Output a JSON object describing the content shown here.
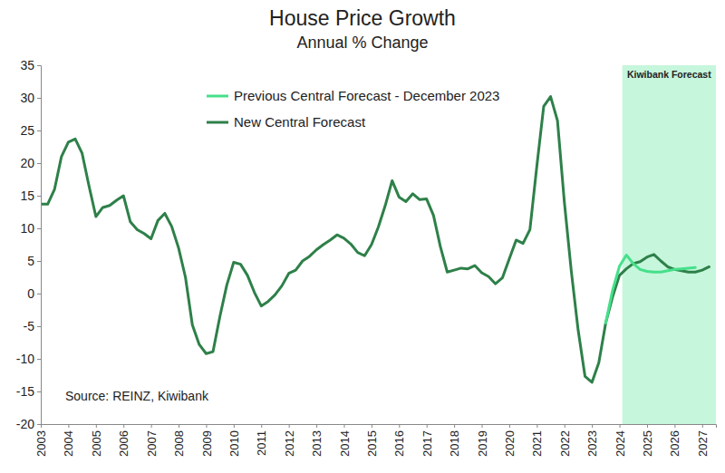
{
  "chart_data": {
    "type": "line",
    "title": "House Price Growth",
    "subtitle": "Annual % Change",
    "source": "Source: REINZ, Kiwibank",
    "shaded_region": {
      "label": "Kiwibank Forecast",
      "x": [
        2024.1,
        2027.5
      ],
      "color": "#c6f6dc"
    },
    "x": [
      2003,
      2003.25,
      2003.5,
      2003.75,
      2004,
      2004.25,
      2004.5,
      2004.75,
      2005,
      2005.25,
      2005.5,
      2005.75,
      2006,
      2006.25,
      2006.5,
      2006.75,
      2007,
      2007.25,
      2007.5,
      2007.75,
      2008,
      2008.25,
      2008.5,
      2008.75,
      2009,
      2009.25,
      2009.5,
      2009.75,
      2010,
      2010.25,
      2010.5,
      2010.75,
      2011,
      2011.25,
      2011.5,
      2011.75,
      2012,
      2012.25,
      2012.5,
      2012.75,
      2013,
      2013.25,
      2013.5,
      2013.75,
      2014,
      2014.25,
      2014.5,
      2014.75,
      2015,
      2015.25,
      2015.5,
      2015.75,
      2016,
      2016.25,
      2016.5,
      2016.75,
      2017,
      2017.25,
      2017.5,
      2017.75,
      2018,
      2018.25,
      2018.5,
      2018.75,
      2019,
      2019.25,
      2019.5,
      2019.75,
      2020,
      2020.25,
      2020.5,
      2020.75,
      2021,
      2021.25,
      2021.5,
      2021.75,
      2022,
      2022.25,
      2022.5,
      2022.75,
      2023,
      2023.25,
      2023.5,
      2023.75,
      2024,
      2024.25,
      2024.5,
      2024.75,
      2025,
      2025.25,
      2025.5,
      2025.75,
      2026,
      2026.25,
      2026.5,
      2026.75,
      2027,
      2027.25
    ],
    "series": [
      {
        "name": "Previous Central Forecast - December 2023",
        "color": "#45e08a",
        "values": [
          null,
          null,
          null,
          null,
          null,
          null,
          null,
          null,
          null,
          null,
          null,
          null,
          null,
          null,
          null,
          null,
          null,
          null,
          null,
          null,
          null,
          null,
          null,
          null,
          null,
          null,
          null,
          null,
          null,
          null,
          null,
          null,
          null,
          null,
          null,
          null,
          null,
          null,
          null,
          null,
          null,
          null,
          null,
          null,
          null,
          null,
          null,
          null,
          null,
          null,
          null,
          null,
          null,
          null,
          null,
          null,
          null,
          null,
          null,
          null,
          null,
          null,
          null,
          null,
          null,
          null,
          null,
          null,
          null,
          null,
          null,
          null,
          null,
          null,
          null,
          null,
          null,
          null,
          null,
          null,
          null,
          null,
          -4.5,
          0.5,
          4.2,
          5.9,
          4.6,
          3.7,
          3.4,
          3.3,
          3.3,
          3.5,
          3.7,
          3.8,
          3.9,
          4.0,
          null,
          null
        ]
      },
      {
        "name": "New Central Forecast",
        "color": "#2e8049",
        "values": [
          13.7,
          13.7,
          16,
          21,
          23.2,
          23.7,
          21.5,
          16.5,
          11.8,
          13.2,
          13.5,
          14.3,
          15,
          11,
          9.8,
          9.2,
          8.4,
          11.2,
          12.3,
          10.3,
          7,
          2.5,
          -4.8,
          -7.8,
          -9.2,
          -8.9,
          -3.5,
          1.3,
          4.8,
          4.5,
          2.8,
          0.2,
          -1.9,
          -1.2,
          -0.2,
          1.2,
          3.1,
          3.6,
          5,
          5.7,
          6.7,
          7.5,
          8.2,
          9,
          8.5,
          7.6,
          6.3,
          5.8,
          7.5,
          10.2,
          13.5,
          17.3,
          14.8,
          14.1,
          15.3,
          14.4,
          14.5,
          12,
          7.2,
          3.3,
          3.6,
          3.9,
          3.8,
          4.3,
          3.2,
          2.6,
          1.5,
          2.4,
          5.3,
          8.2,
          7.7,
          9.8,
          19.5,
          28.7,
          30.2,
          26.5,
          14,
          3.5,
          -5.6,
          -12.7,
          -13.6,
          -10.6,
          -4.5,
          -0.5,
          2.8,
          3.8,
          4.6,
          4.9,
          5.6,
          6,
          5,
          4.1,
          3.7,
          3.5,
          3.3,
          3.3,
          3.6,
          4.1
        ]
      }
    ],
    "xlim": [
      2003,
      2027.5
    ],
    "xticks": [
      2003,
      2004,
      2005,
      2006,
      2007,
      2008,
      2009,
      2010,
      2011,
      2012,
      2013,
      2014,
      2015,
      2016,
      2017,
      2018,
      2019,
      2020,
      2021,
      2022,
      2023,
      2024,
      2025,
      2026,
      2027
    ],
    "ylim": [
      -20,
      35
    ],
    "yticks": [
      -20,
      -15,
      -10,
      -5,
      0,
      5,
      10,
      15,
      20,
      25,
      30,
      35
    ],
    "grid": false,
    "legend": "top"
  }
}
